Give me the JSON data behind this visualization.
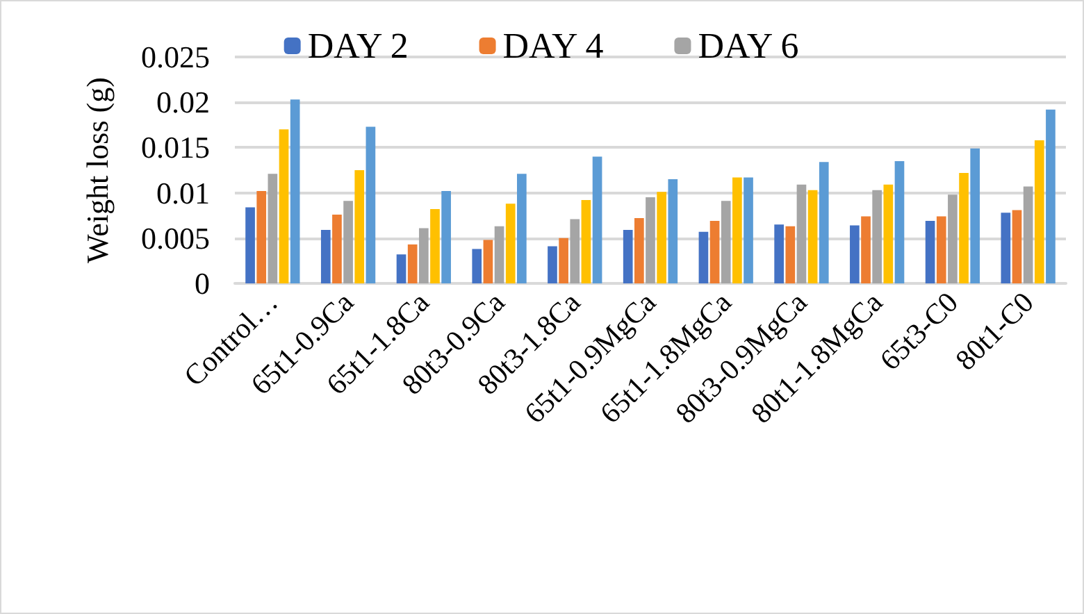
{
  "chart_data": {
    "type": "bar",
    "ylabel": "Weight loss (g)",
    "categories": [
      "Control…",
      "65t1-0.9Ca",
      "65t1-1.8Ca",
      "80t3-0.9Ca",
      "80t3-1.8Ca",
      "65t1-0.9MgCa",
      "65t1-1.8MgCa",
      "80t3-0.9MgCa",
      "80t1-1.8MgCa",
      "65t3-C0",
      "80t1-C0"
    ],
    "series": [
      {
        "name": "DAY 2",
        "color": "#4472c4",
        "values": [
          0.0084,
          0.0059,
          0.0032,
          0.0038,
          0.0041,
          0.0059,
          0.0057,
          0.0065,
          0.0064,
          0.0069,
          0.0078
        ]
      },
      {
        "name": "DAY 4",
        "color": "#ed7d31",
        "values": [
          0.0102,
          0.0076,
          0.0043,
          0.0048,
          0.005,
          0.0072,
          0.0069,
          0.0063,
          0.0074,
          0.0074,
          0.0081
        ]
      },
      {
        "name": "DAY 6",
        "color": "#a5a5a5",
        "values": [
          0.0121,
          0.0091,
          0.0061,
          0.0063,
          0.0071,
          0.0095,
          0.0091,
          0.0109,
          0.0103,
          0.0098,
          0.0107
        ]
      },
      {
        "color": "#ffc000",
        "values": [
          0.017,
          0.0125,
          0.0082,
          0.0088,
          0.0092,
          0.0101,
          0.0117,
          0.0103,
          0.0109,
          0.0122,
          0.0158
        ]
      },
      {
        "color": "#5b9bd5",
        "values": [
          0.0203,
          0.0173,
          0.0102,
          0.0121,
          0.014,
          0.0115,
          0.0117,
          0.0134,
          0.0135,
          0.0149,
          0.0192
        ]
      }
    ],
    "ylim": [
      0,
      0.025
    ],
    "yticks": [
      0,
      0.005,
      0.01,
      0.015,
      0.02,
      0.025
    ],
    "grid": "y",
    "legend": "top"
  }
}
